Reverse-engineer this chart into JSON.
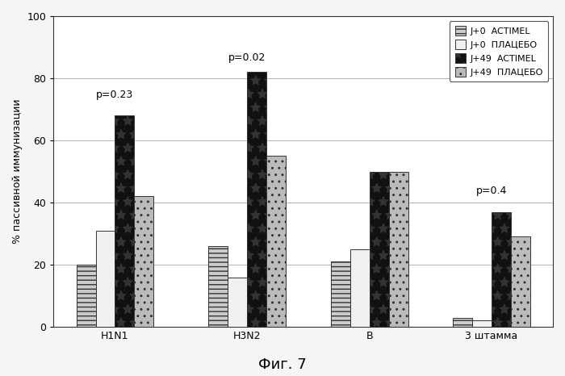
{
  "categories": [
    "H1N1",
    "H3N2",
    "B",
    "3 штамма"
  ],
  "series_order": [
    "J+0 ACTIMEL",
    "J+0 ПЛАЦЕБО",
    "J+49 ACTIMEL",
    "J+49 ПЛАЦЕБО"
  ],
  "series": {
    "J+0 ACTIMEL": [
      20,
      26,
      21,
      3
    ],
    "J+0 ПЛАЦЕБО": [
      31,
      16,
      25,
      2
    ],
    "J+49 ACTIMEL": [
      68,
      82,
      50,
      37
    ],
    "J+49 ПЛАЦЕБО": [
      42,
      55,
      50,
      29
    ]
  },
  "bar_colors": [
    "#cccccc",
    "#f0f0f0",
    "#111111",
    "#bbbbbb"
  ],
  "bar_hatches": [
    "---",
    "",
    "* ",
    ".."
  ],
  "bar_edgecolors": [
    "#333333",
    "#333333",
    "#333333",
    "#333333"
  ],
  "ylim": [
    0,
    100
  ],
  "yticks": [
    0,
    20,
    40,
    60,
    80,
    100
  ],
  "ylabel": "% пассивной иммунизации",
  "annotations": [
    {
      "text": "p=0.23",
      "group": 0,
      "y": 73
    },
    {
      "text": "p=0.02",
      "group": 1,
      "y": 85
    },
    {
      "text": "p=0.4",
      "group": 3,
      "y": 42
    }
  ],
  "legend_labels": [
    "J+0  ACTIMEL",
    "J+0  ПЛАЦЕБО",
    "J+49  ACTIMEL",
    "J+49  ПЛАЦЕБО"
  ],
  "caption": "Фиг. 7",
  "background_color": "#f5f5f5",
  "plot_bg_color": "#ffffff",
  "bar_width": 0.19,
  "group_positions": [
    0.0,
    1.3,
    2.5,
    3.7
  ]
}
